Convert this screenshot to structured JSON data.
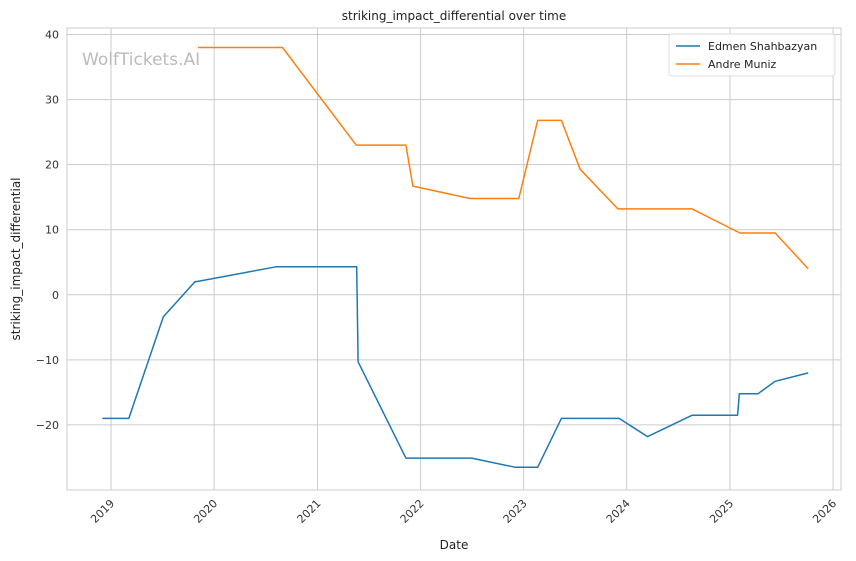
{
  "chart_data": {
    "type": "line",
    "title": "striking_impact_differential over time",
    "xlabel": "Date",
    "ylabel": "striking_impact_differential",
    "watermark": "WolfTickets.AI",
    "x_ticks": [
      "2019",
      "2020",
      "2021",
      "2022",
      "2023",
      "2024",
      "2025",
      "2026"
    ],
    "y_ticks": [
      40,
      30,
      20,
      10,
      0,
      -10,
      -20
    ],
    "y_tick_labels": [
      "40",
      "30",
      "20",
      "10",
      "0",
      "−10",
      "−20"
    ],
    "xlim": [
      "2018-07-29",
      "2026-01-29"
    ],
    "ylim": [
      -30,
      41
    ],
    "grid": true,
    "legend_position": "top-right",
    "series": [
      {
        "name": "Edmen Shahbazyan",
        "color": "#1f77b4",
        "points": [
          [
            "2018-12-01",
            -19
          ],
          [
            "2019-03-05",
            -19
          ],
          [
            "2019-07-05",
            -3.4
          ],
          [
            "2019-10-25",
            2
          ],
          [
            "2019-11-09",
            2.1
          ],
          [
            "2020-08-08",
            4.3
          ],
          [
            "2021-05-20",
            4.3
          ],
          [
            "2021-05-25",
            -10.3
          ],
          [
            "2021-11-10",
            -25.1
          ],
          [
            "2022-07-01",
            -25.1
          ],
          [
            "2022-12-01",
            -26.5
          ],
          [
            "2023-02-20",
            -26.5
          ],
          [
            "2023-05-15",
            -19
          ],
          [
            "2023-12-05",
            -19
          ],
          [
            "2024-03-15",
            -21.8
          ],
          [
            "2024-08-20",
            -18.5
          ],
          [
            "2025-01-28",
            -18.5
          ],
          [
            "2025-02-03",
            -15.2
          ],
          [
            "2025-04-10",
            -15.2
          ],
          [
            "2025-06-10",
            -13.3
          ],
          [
            "2025-10-05",
            -12
          ]
        ]
      },
      {
        "name": "Andre Muniz",
        "color": "#ff7f0e",
        "points": [
          [
            "2019-11-05",
            38
          ],
          [
            "2020-08-30",
            38
          ],
          [
            "2021-05-18",
            23
          ],
          [
            "2021-11-10",
            23
          ],
          [
            "2021-12-05",
            16.7
          ],
          [
            "2022-06-25",
            14.8
          ],
          [
            "2022-12-15",
            14.8
          ],
          [
            "2023-02-20",
            26.8
          ],
          [
            "2023-05-15",
            26.8
          ],
          [
            "2023-07-20",
            19.3
          ],
          [
            "2023-12-01",
            13.2
          ],
          [
            "2024-08-20",
            13.2
          ],
          [
            "2025-02-05",
            9.5
          ],
          [
            "2025-06-10",
            9.5
          ],
          [
            "2025-10-05",
            4
          ]
        ]
      }
    ]
  }
}
